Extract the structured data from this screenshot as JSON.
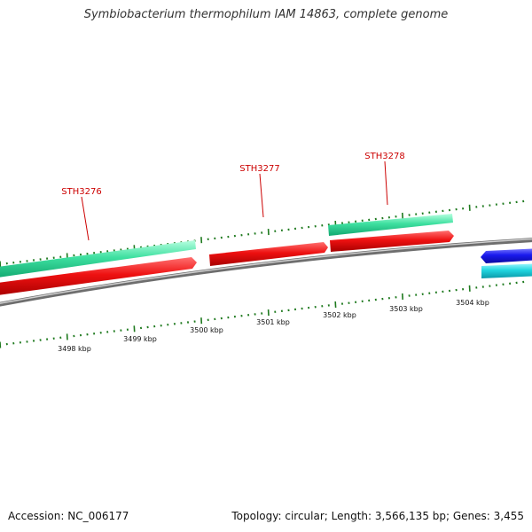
{
  "title": "Symbiobacterium thermophilum IAM 14863, complete genome",
  "accession": "Accession: NC_006177",
  "summary": "Topology: circular; Length: 3,566,135 bp; Genes: 3,455",
  "colors": {
    "backbone": "#8c8c8c",
    "tick": "#1f7a1f",
    "cds_forward": "#3ee0a0",
    "cds_forward_dark": "#14b37a",
    "gene_forward": "#ee1111",
    "gene_reverse": "#1a1aee",
    "cds_reverse": "#20d6e0",
    "gene_label": "#cc0000"
  },
  "scale_labels": [
    "3498 kbp",
    "3499 kbp",
    "3500 kbp",
    "3501 kbp",
    "3502 kbp",
    "3503 kbp",
    "3504 kbp"
  ],
  "genes": [
    {
      "id": "STH3276",
      "strand": "forward"
    },
    {
      "id": "STH3277",
      "strand": "forward"
    },
    {
      "id": "STH3278",
      "strand": "forward"
    }
  ]
}
